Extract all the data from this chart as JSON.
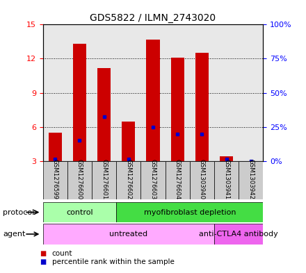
{
  "title": "GDS5822 / ILMN_2743020",
  "samples": [
    "GSM1276599",
    "GSM1276600",
    "GSM1276601",
    "GSM1276602",
    "GSM1276603",
    "GSM1276604",
    "GSM1303940",
    "GSM1303941",
    "GSM1303942"
  ],
  "count_values": [
    5.5,
    13.3,
    11.2,
    6.5,
    13.7,
    12.1,
    12.5,
    3.4,
    3.0
  ],
  "percentile_values": [
    3.15,
    4.8,
    6.9,
    3.2,
    6.0,
    5.4,
    5.4,
    3.2,
    3.0
  ],
  "ylim_left": [
    3,
    15
  ],
  "ylim_right": [
    0,
    100
  ],
  "yticks_left": [
    3,
    6,
    9,
    12,
    15
  ],
  "yticks_right": [
    0,
    25,
    50,
    75,
    100
  ],
  "ytick_labels_right": [
    "0%",
    "25%",
    "50%",
    "75%",
    "100%"
  ],
  "bar_color": "#CC0000",
  "blue_color": "#0000CC",
  "bar_width": 0.55,
  "protocol_groups": [
    {
      "label": "control",
      "start": 0,
      "end": 3,
      "color": "#AAFFAA"
    },
    {
      "label": "myofibroblast depletion",
      "start": 3,
      "end": 9,
      "color": "#44DD44"
    }
  ],
  "agent_groups": [
    {
      "label": "untreated",
      "start": 0,
      "end": 7,
      "color": "#FFAAFF"
    },
    {
      "label": "anti-CTLA4 antibody",
      "start": 7,
      "end": 9,
      "color": "#EE66EE"
    }
  ],
  "protocol_label": "protocol",
  "agent_label": "agent",
  "plot_bg_color": "#E8E8E8",
  "title_fontsize": 10
}
